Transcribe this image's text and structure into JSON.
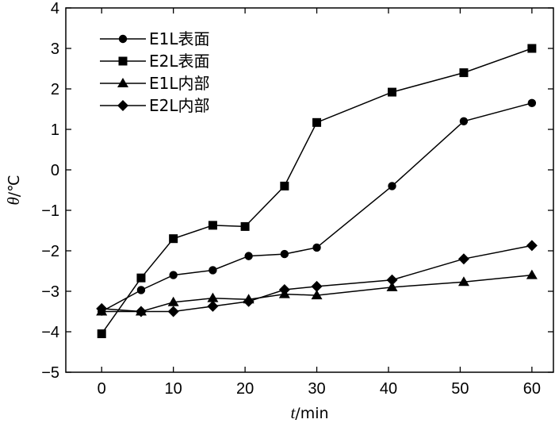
{
  "chart_data": {
    "type": "line",
    "title": "",
    "xlabel_symbol": "t",
    "xlabel_unit": "/min",
    "ylabel_symbol": "θ",
    "ylabel_unit": "/℃",
    "xlim": [
      -5,
      63
    ],
    "ylim": [
      -5,
      4
    ],
    "xticks": [
      0,
      10,
      20,
      30,
      40,
      50,
      60
    ],
    "yticks": [
      -5,
      -4,
      -3,
      -2,
      -1,
      0,
      1,
      2,
      3,
      4
    ],
    "xtick_labels": [
      "0",
      "10",
      "20",
      "30",
      "40",
      "50",
      "60"
    ],
    "ytick_labels": [
      "−5",
      "−4",
      "−3",
      "−2",
      "−1",
      "0",
      "1",
      "2",
      "3",
      "4"
    ],
    "grid": false,
    "legend_position": "top-left",
    "series": [
      {
        "name": "E1L表面",
        "marker": "circle",
        "x": [
          0,
          5.5,
          10,
          15.5,
          20.5,
          25.5,
          30,
          40.5,
          50.5,
          60
        ],
        "y": [
          -3.5,
          -2.97,
          -2.6,
          -2.48,
          -2.13,
          -2.08,
          -1.92,
          -0.4,
          1.2,
          1.65
        ]
      },
      {
        "name": "E2L表面",
        "marker": "square",
        "x": [
          0,
          5.5,
          10,
          15.5,
          20,
          25.5,
          30,
          40.5,
          50.5,
          60
        ],
        "y": [
          -4.05,
          -2.67,
          -1.7,
          -1.37,
          -1.4,
          -0.4,
          1.17,
          1.92,
          2.4,
          3.0
        ]
      },
      {
        "name": "E1L内部",
        "marker": "triangle",
        "x": [
          0,
          5.5,
          10,
          15.5,
          20.5,
          25.5,
          30,
          40.5,
          50.5,
          60
        ],
        "y": [
          -3.5,
          -3.5,
          -3.27,
          -3.17,
          -3.2,
          -3.07,
          -3.1,
          -2.9,
          -2.77,
          -2.6
        ]
      },
      {
        "name": "E2L内部",
        "marker": "diamond",
        "x": [
          0,
          5.5,
          10,
          15.5,
          20.5,
          25.5,
          30,
          40.5,
          50.5,
          60
        ],
        "y": [
          -3.43,
          -3.5,
          -3.5,
          -3.37,
          -3.25,
          -2.96,
          -2.88,
          -2.72,
          -2.2,
          -1.87
        ]
      }
    ]
  }
}
